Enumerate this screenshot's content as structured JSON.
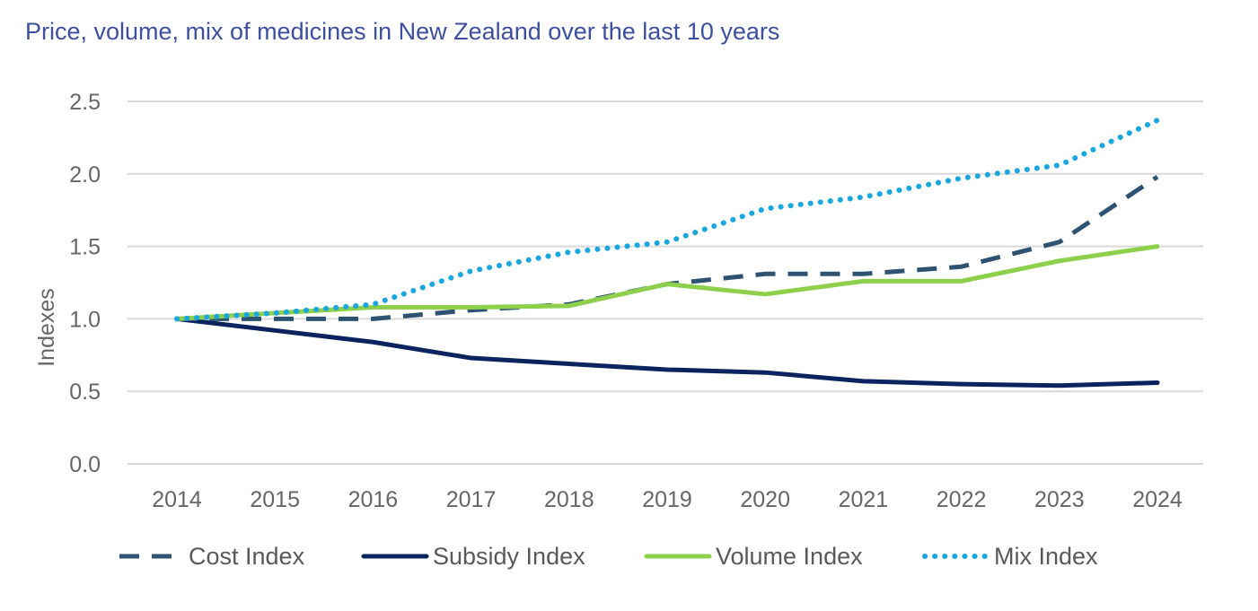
{
  "chart_data": {
    "type": "line",
    "title": "Price, volume, mix of medicines in New Zealand over the last 10 years",
    "xlabel": "",
    "ylabel": "Indexes",
    "ylim": [
      0,
      2.5
    ],
    "yticks": [
      "0.0",
      "0.5",
      "1.0",
      "1.5",
      "2.0",
      "2.5"
    ],
    "grid": true,
    "legend_position": "bottom",
    "x": [
      "2014",
      "2015",
      "2016",
      "2017",
      "2018",
      "2019",
      "2020",
      "2021",
      "2022",
      "2023",
      "2024"
    ],
    "series": [
      {
        "name": "Cost Index",
        "style": "dashed",
        "color": "#2e5272",
        "values": [
          1.0,
          1.0,
          1.0,
          1.06,
          1.1,
          1.24,
          1.31,
          1.31,
          1.36,
          1.53,
          1.98
        ]
      },
      {
        "name": "Subsidy Index",
        "style": "solid",
        "color": "#0b2460",
        "values": [
          1.0,
          0.92,
          0.84,
          0.73,
          0.69,
          0.65,
          0.63,
          0.57,
          0.55,
          0.54,
          0.56
        ]
      },
      {
        "name": "Volume Index",
        "style": "solid",
        "color": "#8dd04c",
        "values": [
          1.0,
          1.04,
          1.08,
          1.08,
          1.09,
          1.24,
          1.17,
          1.26,
          1.26,
          1.4,
          1.5
        ]
      },
      {
        "name": "Mix Index",
        "style": "dotted",
        "color": "#1aa7e0",
        "values": [
          1.0,
          1.04,
          1.1,
          1.33,
          1.46,
          1.53,
          1.76,
          1.84,
          1.97,
          2.06,
          2.37
        ]
      }
    ]
  }
}
